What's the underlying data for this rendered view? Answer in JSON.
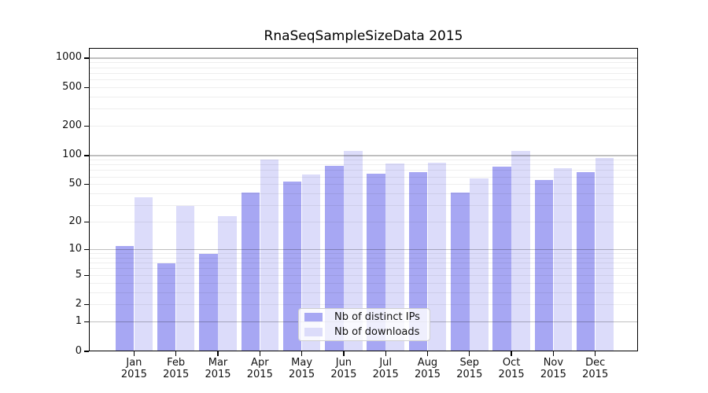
{
  "figure": {
    "background": "#ffffff",
    "spine_color": "#000000",
    "grid_major_color": "#bfbfbf",
    "grid_minor_color": "#efefef"
  },
  "chart_data": {
    "type": "bar",
    "title": "RnaSeqSampleSizeData 2015",
    "categories": [
      "Jan 2015",
      "Feb 2015",
      "Mar 2015",
      "Apr 2015",
      "May 2015",
      "Jun 2015",
      "Jul 2015",
      "Aug 2015",
      "Sep 2015",
      "Oct 2015",
      "Nov 2015",
      "Dec 2015"
    ],
    "series": [
      {
        "name": "Nb of distinct IPs",
        "color": "#a7a7f3",
        "values": [
          11,
          7,
          9,
          41,
          54,
          78,
          65,
          67,
          41,
          77,
          56,
          67
        ]
      },
      {
        "name": "Nb of downloads",
        "color": "#dcdcfa",
        "values": [
          37,
          30,
          23,
          91,
          64,
          112,
          82,
          84,
          58,
          111,
          74,
          94
        ]
      }
    ],
    "xlabel": "",
    "ylabel": "",
    "yscale": "log10(1+y)",
    "ylim": [
      0,
      1272
    ],
    "yticks": [
      0,
      1,
      2,
      5,
      10,
      20,
      50,
      100,
      200,
      500,
      1000
    ],
    "major_gridlines": [
      1,
      10,
      100,
      1000
    ],
    "minor_gridlines": [
      2,
      3,
      4,
      5,
      6,
      7,
      8,
      9,
      20,
      30,
      40,
      50,
      60,
      70,
      80,
      90,
      200,
      300,
      400,
      500,
      600,
      700,
      800,
      900
    ],
    "grid": "horizontal",
    "legend_position": "lower center inside"
  }
}
